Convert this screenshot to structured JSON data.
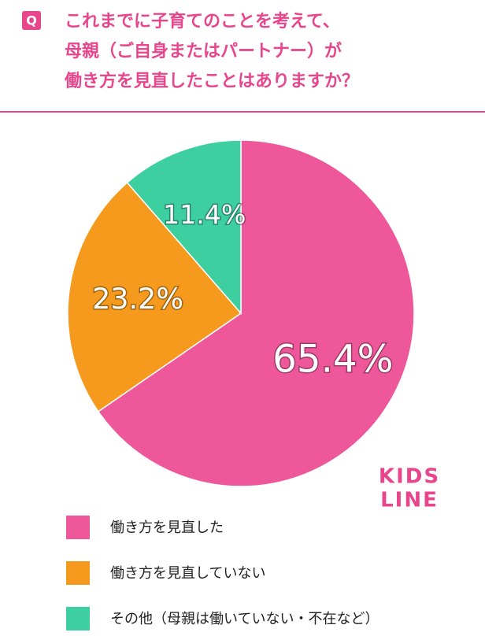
{
  "header": {
    "badge": "Q",
    "title_lines": [
      "これまでに子育てのことを考えて、",
      "母親（ご自身またはパートナー）が",
      "働き方を見直したことはありますか？"
    ]
  },
  "chart_data": {
    "type": "pie",
    "categories": [
      "働き方を見直した",
      "働き方を見直していない",
      "その他（母親は働いていない・不在など）"
    ],
    "values": [
      65.4,
      23.2,
      11.4
    ],
    "value_labels": [
      "65.4%",
      "23.2%",
      "11.4%"
    ],
    "colors": [
      "#ef579b",
      "#f59a1d",
      "#3dcfa0"
    ],
    "legend": "bottom"
  },
  "logo": {
    "lines": [
      "KIDS",
      "LINE"
    ]
  }
}
